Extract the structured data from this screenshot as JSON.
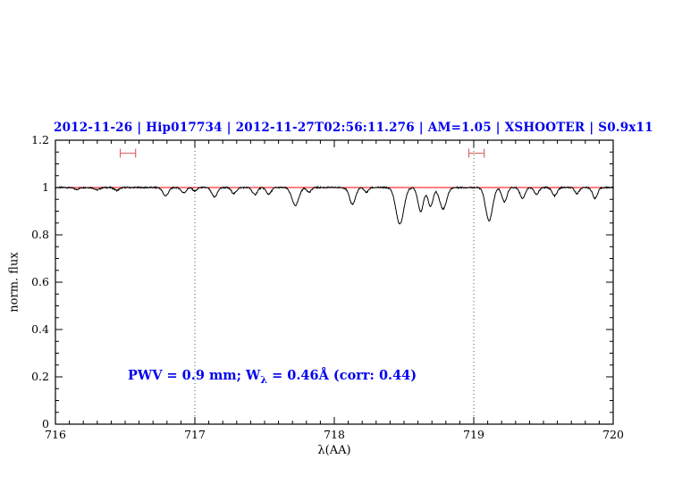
{
  "figure": {
    "title": "2012-11-26 | Hip017734 | 2012-11-27T02:56:11.276 | AM=1.05 | XSHOOTER | S0.9x11",
    "xlabel": "λ(AA)",
    "ylabel": "norm. flux",
    "annotation": {
      "pre": "PWV = 0.9 mm; W",
      "sub": "λ",
      "post": " = 0.46Å (corr: 0.44)"
    }
  },
  "chart_data": {
    "type": "line",
    "title": "2012-11-26 | Hip017734 | 2012-11-27T02:56:11.276 | AM=1.05 | XSHOOTER | S0.9x11",
    "xlabel": "λ(AA)",
    "ylabel": "norm. flux",
    "xlim": [
      716,
      720
    ],
    "ylim": [
      0,
      1.2
    ],
    "x_ticks": [
      716,
      717,
      718,
      719,
      720
    ],
    "x_tick_labels": [
      "716",
      "717",
      "718",
      "719",
      "720"
    ],
    "y_ticks": [
      0,
      0.2,
      0.4,
      0.6,
      0.8,
      1,
      1.2
    ],
    "y_tick_labels": [
      "0",
      "0.2",
      "0.4",
      "0.6",
      "0.8",
      "1",
      "1.2"
    ],
    "x_minor_step": 0.1,
    "y_minor_step": 0.05,
    "grid": false,
    "legend": "none",
    "continuum_level": 1.0,
    "continuum_color": "#ff0000",
    "line_color": "#000000",
    "noise_amplitude": 0.003,
    "dotted_vlines": [
      717,
      719
    ],
    "dotted_vline_color": "#555555",
    "range_markers": [
      {
        "x_center": 716.52,
        "half_width": 0.055,
        "y": 1.145,
        "color": "#dd6666"
      },
      {
        "x_center": 719.02,
        "half_width": 0.055,
        "y": 1.145,
        "color": "#dd6666"
      }
    ],
    "annotation": {
      "text": "PWV = 0.9 mm; W_λ = 0.46Å (corr: 0.44)",
      "x": 716.52,
      "y": 0.2,
      "color": "#0000ee"
    },
    "absorption_lines": [
      {
        "center": 716.15,
        "depth": 0.008,
        "sigma": 0.018
      },
      {
        "center": 716.3,
        "depth": 0.01,
        "sigma": 0.018
      },
      {
        "center": 716.44,
        "depth": 0.012,
        "sigma": 0.018
      },
      {
        "center": 716.79,
        "depth": 0.035,
        "sigma": 0.02
      },
      {
        "center": 716.92,
        "depth": 0.022,
        "sigma": 0.018
      },
      {
        "center": 717.0,
        "depth": 0.015,
        "sigma": 0.015
      },
      {
        "center": 717.14,
        "depth": 0.04,
        "sigma": 0.02
      },
      {
        "center": 717.28,
        "depth": 0.025,
        "sigma": 0.018
      },
      {
        "center": 717.43,
        "depth": 0.03,
        "sigma": 0.018
      },
      {
        "center": 717.53,
        "depth": 0.028,
        "sigma": 0.018
      },
      {
        "center": 717.72,
        "depth": 0.075,
        "sigma": 0.025
      },
      {
        "center": 717.82,
        "depth": 0.02,
        "sigma": 0.015
      },
      {
        "center": 718.13,
        "depth": 0.07,
        "sigma": 0.022
      },
      {
        "center": 718.23,
        "depth": 0.02,
        "sigma": 0.015
      },
      {
        "center": 718.47,
        "depth": 0.155,
        "sigma": 0.028
      },
      {
        "center": 718.62,
        "depth": 0.1,
        "sigma": 0.02
      },
      {
        "center": 718.69,
        "depth": 0.08,
        "sigma": 0.018
      },
      {
        "center": 718.78,
        "depth": 0.09,
        "sigma": 0.025
      },
      {
        "center": 719.11,
        "depth": 0.14,
        "sigma": 0.025
      },
      {
        "center": 719.22,
        "depth": 0.06,
        "sigma": 0.018
      },
      {
        "center": 719.35,
        "depth": 0.045,
        "sigma": 0.018
      },
      {
        "center": 719.45,
        "depth": 0.03,
        "sigma": 0.016
      },
      {
        "center": 719.58,
        "depth": 0.035,
        "sigma": 0.018
      },
      {
        "center": 719.74,
        "depth": 0.025,
        "sigma": 0.016
      },
      {
        "center": 719.87,
        "depth": 0.045,
        "sigma": 0.018
      }
    ]
  }
}
